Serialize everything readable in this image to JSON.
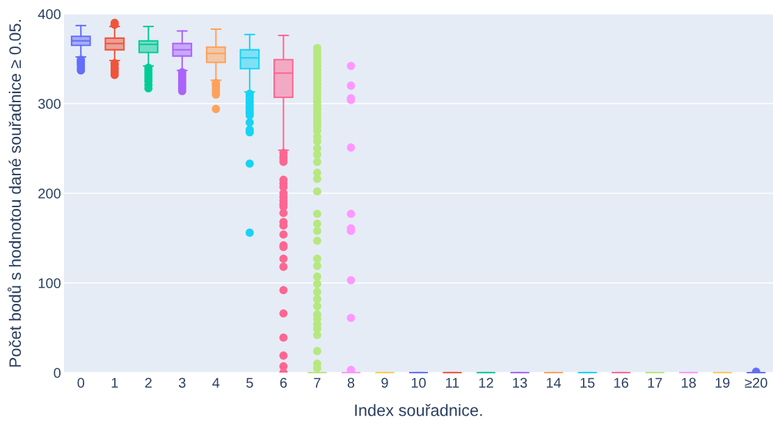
{
  "chart_data": {
    "type": "box",
    "xlabel": "Index souřadnice.",
    "ylabel": "Počet bodů s hodnotou dané souřadnice ≥ 0.05.",
    "categories": [
      "0",
      "1",
      "2",
      "3",
      "4",
      "5",
      "6",
      "7",
      "8",
      "9",
      "10",
      "11",
      "12",
      "13",
      "14",
      "15",
      "16",
      "17",
      "18",
      "19",
      "≥20"
    ],
    "colors": [
      "#636efa",
      "#ef553b",
      "#00cc96",
      "#ab63fa",
      "#ffa15a",
      "#19d3f3",
      "#ff6692",
      "#b6e880",
      "#ff97ff",
      "#fecb52",
      "#636efa",
      "#ef553b",
      "#00cc96",
      "#ab63fa",
      "#ffa15a",
      "#19d3f3",
      "#ff6692",
      "#b6e880",
      "#ff97ff",
      "#fecb52",
      "#636efa"
    ],
    "boxes": [
      {
        "low": 352,
        "q1": 365,
        "median": 370,
        "q3": 375,
        "high": 387,
        "outliers": [
          349,
          347,
          345,
          343,
          340,
          337
        ]
      },
      {
        "low": 348,
        "q1": 360,
        "median": 367,
        "q3": 373,
        "high": 386,
        "outliers": [
          390,
          388,
          345,
          343,
          340,
          338,
          335,
          332
        ]
      },
      {
        "low": 342,
        "q1": 357,
        "median": 366,
        "q3": 370,
        "high": 386,
        "outliers": [
          340,
          337,
          334,
          331,
          328,
          325,
          321,
          317
        ]
      },
      {
        "low": 337,
        "q1": 353,
        "median": 360,
        "q3": 367,
        "high": 381,
        "outliers": [
          335,
          332,
          329,
          326,
          323,
          320,
          317,
          314
        ]
      },
      {
        "low": 326,
        "q1": 346,
        "median": 356,
        "q3": 363,
        "high": 383,
        "outliers": [
          323,
          321,
          319,
          316,
          313,
          310,
          294
        ]
      },
      {
        "low": 313,
        "q1": 339,
        "median": 351,
        "q3": 360,
        "high": 377,
        "outliers": [
          311,
          308,
          305,
          302,
          299,
          296,
          293,
          290,
          287,
          279,
          271,
          268,
          233,
          156
        ]
      },
      {
        "low": 248,
        "q1": 307,
        "median": 334,
        "q3": 349,
        "high": 376,
        "outliers": [
          245,
          241,
          238,
          235,
          215,
          211,
          207,
          200,
          196,
          192,
          188,
          185,
          178,
          168,
          164,
          154,
          142,
          140,
          127,
          118,
          92,
          66,
          39,
          19,
          7,
          0
        ]
      },
      {
        "low": 0,
        "q1": 0,
        "median": 0,
        "q3": 0,
        "high": 0,
        "outliers": [
          362,
          358,
          354,
          350,
          346,
          342,
          338,
          334,
          330,
          326,
          322,
          318,
          314,
          310,
          306,
          302,
          298,
          294,
          290,
          286,
          282,
          278,
          274,
          270,
          263,
          258,
          250,
          243,
          235,
          223,
          216,
          202,
          177,
          166,
          158,
          147,
          127,
          119,
          107,
          99,
          90,
          82,
          74,
          65,
          60,
          54,
          49,
          42,
          24,
          10,
          5
        ]
      },
      {
        "low": 0,
        "q1": 0,
        "median": 0,
        "q3": 0,
        "high": 0,
        "outliers": [
          342,
          320,
          306,
          304,
          251,
          177,
          161,
          158,
          103,
          61,
          3
        ]
      },
      {
        "low": 0,
        "q1": 0,
        "median": 0,
        "q3": 0,
        "high": 0
      },
      {
        "low": 0,
        "q1": 0,
        "median": 0,
        "q3": 0,
        "high": 0
      },
      {
        "low": 0,
        "q1": 0,
        "median": 0,
        "q3": 0,
        "high": 0
      },
      {
        "low": 0,
        "q1": 0,
        "median": 0,
        "q3": 0,
        "high": 0
      },
      {
        "low": 0,
        "q1": 0,
        "median": 0,
        "q3": 0,
        "high": 0
      },
      {
        "low": 0,
        "q1": 0,
        "median": 0,
        "q3": 0,
        "high": 0
      },
      {
        "low": 0,
        "q1": 0,
        "median": 0,
        "q3": 0,
        "high": 0
      },
      {
        "low": 0,
        "q1": 0,
        "median": 0,
        "q3": 0,
        "high": 0
      },
      {
        "low": 0,
        "q1": 0,
        "median": 0,
        "q3": 0,
        "high": 0
      },
      {
        "low": 0,
        "q1": 0,
        "median": 0,
        "q3": 0,
        "high": 0
      },
      {
        "low": 0,
        "q1": 0,
        "median": 0,
        "q3": 0,
        "high": 0
      },
      {
        "low": 0,
        "q1": 0,
        "median": 0,
        "q3": 0,
        "high": 0,
        "outliers": [
          1
        ]
      }
    ],
    "marker": "circle",
    "ylim": [
      0,
      400
    ],
    "yticks": [
      0,
      100,
      200,
      300,
      400
    ],
    "grid": "y"
  }
}
